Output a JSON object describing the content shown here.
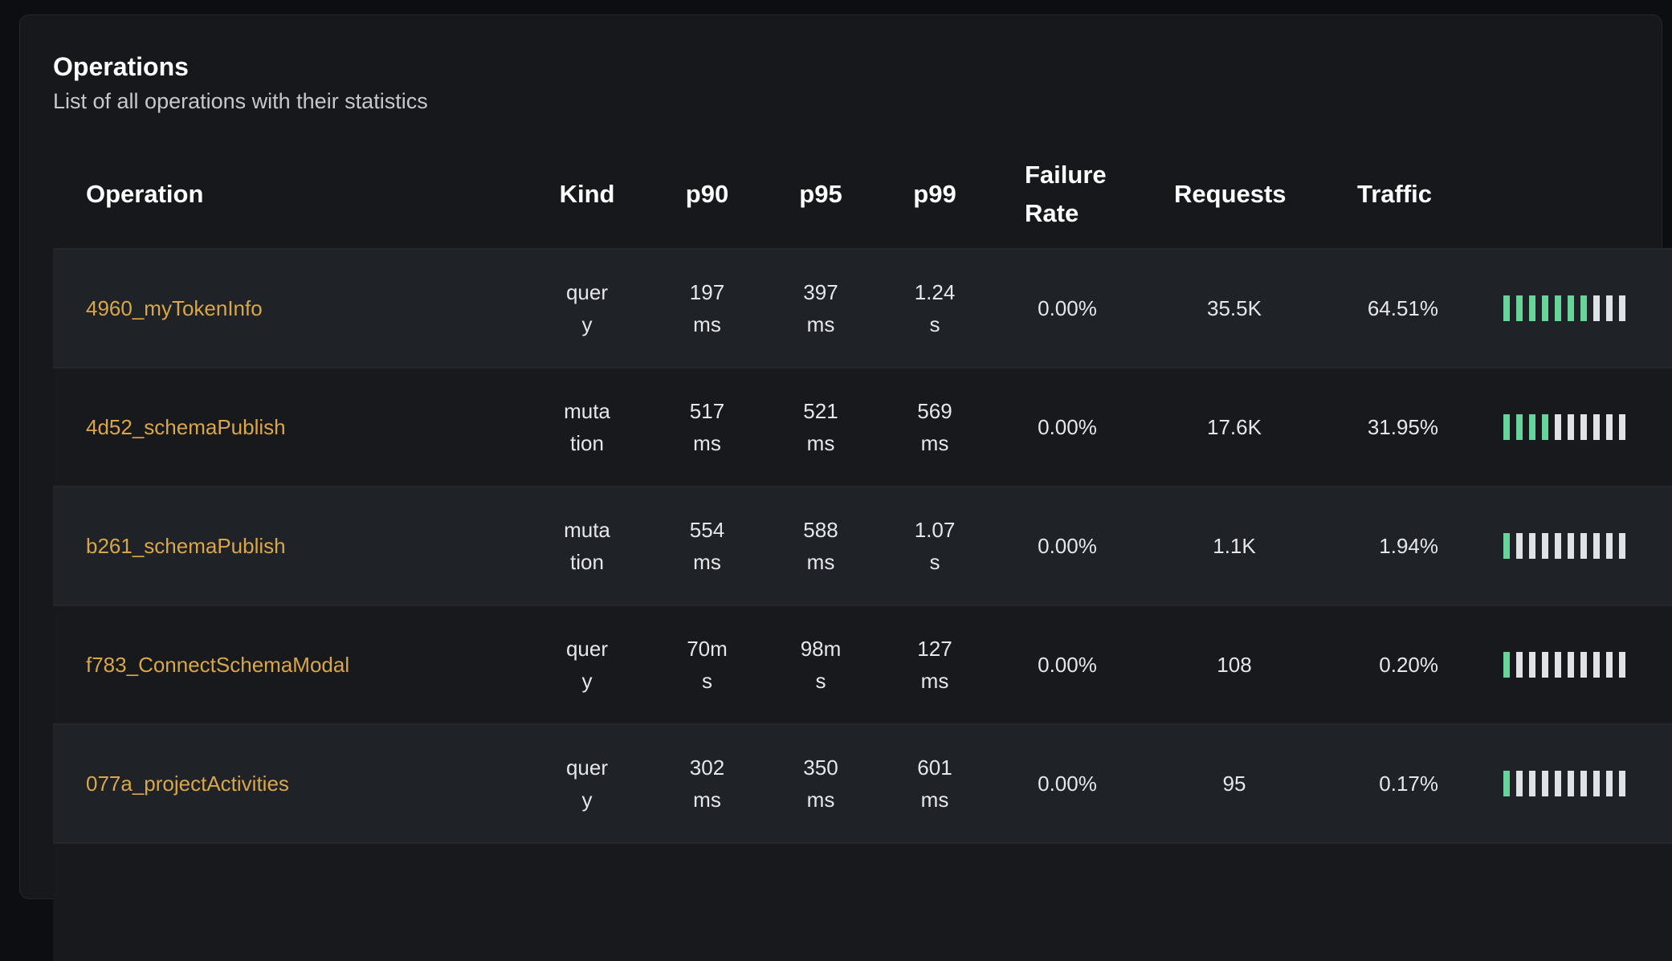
{
  "panel": {
    "title": "Operations",
    "subtitle": "List of all operations with their statistics"
  },
  "columns": [
    "Operation",
    "Kind",
    "p90",
    "p95",
    "p99",
    "Failure Rate",
    "Requests",
    "Traffic"
  ],
  "colors": {
    "operation_link": "#d9a64a",
    "traffic_on": "#68d39b",
    "traffic_off": "#e1e2e5"
  },
  "rows": [
    {
      "operation": "4960_myTokenInfo",
      "kind": "query",
      "p90": "197 ms",
      "p95": "397 ms",
      "p99": "1.24 s",
      "failure_rate": "0.00%",
      "requests": "35.5K",
      "traffic": "64.51%",
      "traffic_bars_filled": 7,
      "traffic_bars_total": 10
    },
    {
      "operation": "4d52_schemaPublish",
      "kind": "mutation",
      "p90": "517 ms",
      "p95": "521 ms",
      "p99": "569 ms",
      "failure_rate": "0.00%",
      "requests": "17.6K",
      "traffic": "31.95%",
      "traffic_bars_filled": 4,
      "traffic_bars_total": 10
    },
    {
      "operation": "b261_schemaPublish",
      "kind": "mutation",
      "p90": "554 ms",
      "p95": "588 ms",
      "p99": "1.07 s",
      "failure_rate": "0.00%",
      "requests": "1.1K",
      "traffic": "1.94%",
      "traffic_bars_filled": 1,
      "traffic_bars_total": 10
    },
    {
      "operation": "f783_ConnectSchemaModal",
      "kind": "query",
      "p90": "70ms",
      "p95": "98ms",
      "p99": "127 ms",
      "failure_rate": "0.00%",
      "requests": "108",
      "traffic": "0.20%",
      "traffic_bars_filled": 1,
      "traffic_bars_total": 10
    },
    {
      "operation": "077a_projectActivities",
      "kind": "query",
      "p90": "302 ms",
      "p95": "350 ms",
      "p99": "601 ms",
      "failure_rate": "0.00%",
      "requests": "95",
      "traffic": "0.17%",
      "traffic_bars_filled": 1,
      "traffic_bars_total": 10
    }
  ]
}
